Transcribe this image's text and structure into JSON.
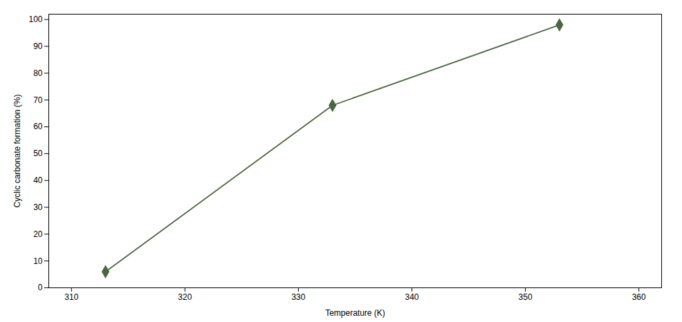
{
  "chart_data": {
    "type": "line",
    "x": [
      313,
      333,
      353
    ],
    "values": [
      6,
      68,
      98
    ],
    "color": "#4a6741",
    "marker": "diamond",
    "xlabel": "Temperature (K)",
    "ylabel": "Cyclic carbonate formation (%)",
    "xlim": [
      308,
      362
    ],
    "ylim": [
      0,
      102
    ],
    "xticks": [
      310,
      320,
      330,
      340,
      350,
      360
    ],
    "yticks": [
      0,
      10,
      20,
      30,
      40,
      50,
      60,
      70,
      80,
      90,
      100
    ]
  }
}
